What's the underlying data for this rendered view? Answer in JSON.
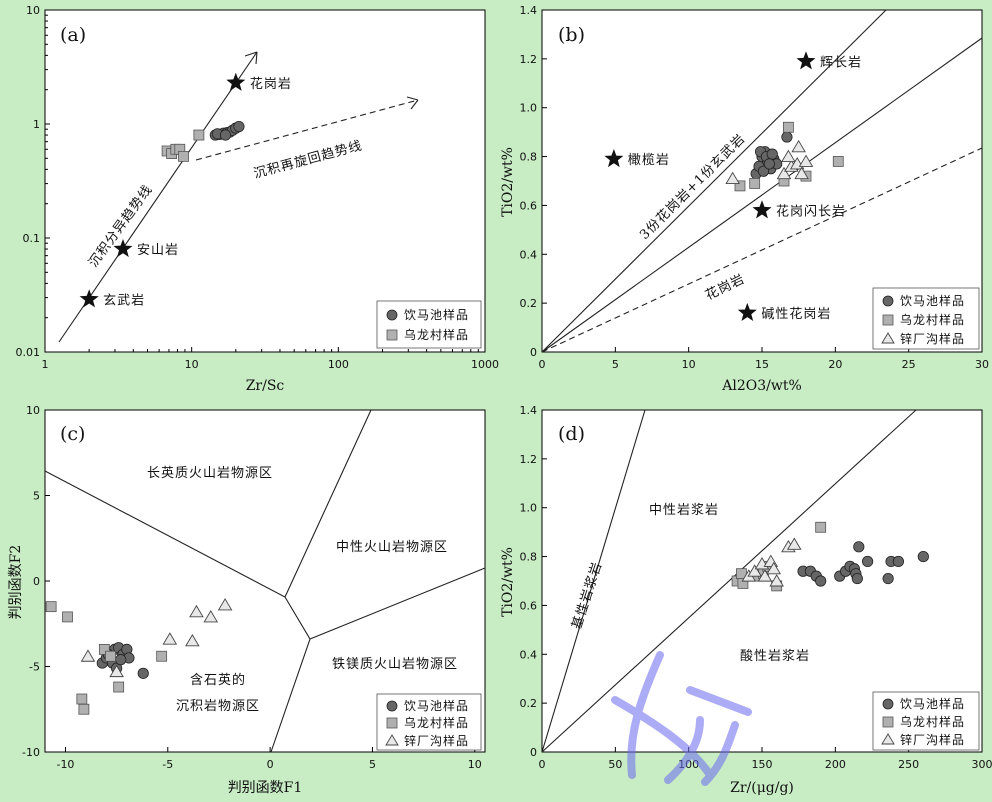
{
  "legend": {
    "yinmachi": "饮马池样品",
    "wulongcun": "乌龙村样品",
    "xinchanggou": "锌厂沟样品"
  },
  "chart_data": [
    {
      "panel": "(a)",
      "type": "scatter",
      "xscale": "log",
      "yscale": "log",
      "xlabel": "Zr/Sc",
      "ylabel": "",
      "xlim": [
        1,
        1000
      ],
      "ylim": [
        0.01,
        10
      ],
      "xticks": [
        "1",
        "10",
        "100",
        "1000"
      ],
      "yticks": [
        "0.01",
        "0.1",
        "1",
        "10"
      ],
      "stars": [
        {
          "label": "花岗岩",
          "x": 20,
          "y": 2.3
        },
        {
          "label": "安山岩",
          "x": 3.4,
          "y": 0.08
        },
        {
          "label": "玄武岩",
          "x": 2,
          "y": 0.029
        }
      ],
      "annotations": [
        "沉积分异趋势线",
        "沉积再旋回趋势线"
      ],
      "series": [
        {
          "name": "饮马池样品",
          "marker": "circle",
          "x": [
            14.5,
            15.5,
            16.5,
            17.5,
            18.2,
            19,
            20,
            21,
            15,
            17
          ],
          "y": [
            0.8,
            0.81,
            0.83,
            0.84,
            0.85,
            0.88,
            0.92,
            0.95,
            0.82,
            0.8
          ]
        },
        {
          "name": "乌龙村样品",
          "marker": "square",
          "x": [
            6.8,
            7.3,
            7.8,
            8.3,
            8.8,
            11.2
          ],
          "y": [
            0.58,
            0.55,
            0.6,
            0.6,
            0.52,
            0.8
          ]
        }
      ]
    },
    {
      "panel": "(b)",
      "type": "scatter",
      "xlabel": "Al2O3/wt%",
      "ylabel": "TiO2/wt%",
      "xlim": [
        0,
        30
      ],
      "ylim": [
        0,
        1.4
      ],
      "xticks": [
        "0",
        "5",
        "10",
        "15",
        "20",
        "25",
        "30"
      ],
      "yticks": [
        "0",
        "0.2",
        "0.4",
        "0.6",
        "0.8",
        "1.0",
        "1.2",
        "1.4"
      ],
      "stars": [
        {
          "label": "辉长岩",
          "x": 18,
          "y": 1.19
        },
        {
          "label": "橄榄岩",
          "x": 4.9,
          "y": 0.79
        },
        {
          "label": "花岗闪长岩",
          "x": 15,
          "y": 0.58
        },
        {
          "label": "碱性花岗岩",
          "x": 14,
          "y": 0.16
        }
      ],
      "annotations": [
        "3份花岗岩+1份玄武岩",
        "花岗岩"
      ],
      "series": [
        {
          "name": "饮马池样品",
          "marker": "circle",
          "x": [
            14.6,
            14.8,
            15,
            15.2,
            15.4,
            15.6,
            15.8,
            16,
            14.9,
            15.3,
            15.1,
            15.7,
            16.7,
            15.5
          ],
          "y": [
            0.73,
            0.76,
            0.8,
            0.82,
            0.78,
            0.75,
            0.79,
            0.77,
            0.82,
            0.8,
            0.74,
            0.81,
            0.88,
            0.77
          ]
        },
        {
          "name": "乌龙村样品",
          "marker": "square",
          "x": [
            13.5,
            14.5,
            16.5,
            16.8,
            18,
            20.2
          ],
          "y": [
            0.68,
            0.69,
            0.7,
            0.92,
            0.72,
            0.78
          ]
        },
        {
          "name": "锌厂沟样品",
          "marker": "triangle",
          "x": [
            13,
            16.5,
            17,
            17.4,
            17.7,
            18,
            17.5,
            16.8
          ],
          "y": [
            0.71,
            0.73,
            0.76,
            0.77,
            0.73,
            0.78,
            0.84,
            0.8
          ]
        }
      ]
    },
    {
      "panel": "(c)",
      "type": "scatter",
      "xlabel": "判别函数F1",
      "ylabel": "判别函数F2",
      "xlim": [
        -11,
        10.5
      ],
      "ylim": [
        -10,
        10
      ],
      "xticks": [
        "-10",
        "-5",
        "0",
        "5",
        "10"
      ],
      "yticks": [
        "-10",
        "-5",
        "0",
        "5",
        "10"
      ],
      "regions": [
        "长英质火山岩物源区",
        "中性火山岩物源区",
        "铁镁质火山岩物源区",
        "含石英的",
        "沉积岩物源区"
      ],
      "series": [
        {
          "name": "饮马池样品",
          "marker": "circle",
          "x": [
            -8.2,
            -8,
            -7.8,
            -7.6,
            -7.4,
            -7.2,
            -7,
            -6.9,
            -7.7,
            -7.5,
            -7.3,
            -6.2,
            -7.9
          ],
          "y": [
            -4.8,
            -4.5,
            -4.2,
            -4,
            -3.9,
            -4.3,
            -4,
            -4.5,
            -4.8,
            -5.1,
            -4.6,
            -5.4,
            -4.3
          ]
        },
        {
          "name": "乌龙村样品",
          "marker": "square",
          "x": [
            -10.7,
            -9.9,
            -9.1,
            -9.2,
            -8.1,
            -7.4,
            -7.8,
            -5.3
          ],
          "y": [
            -1.5,
            -2.1,
            -7.5,
            -6.9,
            -4,
            -6.2,
            -4.4,
            -4.4
          ]
        },
        {
          "name": "锌厂沟样品",
          "marker": "triangle",
          "x": [
            -8.9,
            -7.5,
            -4.9,
            -3.8,
            -3.6,
            -2.9,
            -2.2
          ],
          "y": [
            -4.4,
            -5.3,
            -3.4,
            -3.5,
            -1.8,
            -2.1,
            -1.4
          ]
        }
      ]
    },
    {
      "panel": "(d)",
      "type": "scatter",
      "xlabel": "Zr/(μg/g)",
      "ylabel": "TiO2/wt%",
      "xlim": [
        0,
        300
      ],
      "ylim": [
        0,
        1.4
      ],
      "xticks": [
        "0",
        "50",
        "100",
        "150",
        "200",
        "250",
        "300"
      ],
      "yticks": [
        "0",
        "0.2",
        "0.4",
        "0.6",
        "0.8",
        "1.0",
        "1.2",
        "1.4"
      ],
      "regions": [
        "中性岩浆岩",
        "基性岩浆岩",
        "酸性岩浆岩"
      ],
      "series": [
        {
          "name": "饮马池样品",
          "marker": "circle",
          "x": [
            178,
            183,
            187,
            190,
            203,
            207,
            210,
            213,
            214,
            215,
            216,
            222,
            236,
            238,
            243,
            260
          ],
          "y": [
            0.74,
            0.74,
            0.72,
            0.7,
            0.72,
            0.74,
            0.76,
            0.75,
            0.73,
            0.71,
            0.84,
            0.78,
            0.71,
            0.78,
            0.78,
            0.8
          ]
        },
        {
          "name": "乌龙村样品",
          "marker": "square",
          "x": [
            133,
            136,
            137,
            147,
            151,
            154,
            160,
            190
          ],
          "y": [
            0.7,
            0.73,
            0.69,
            0.72,
            0.73,
            0.76,
            0.68,
            0.92
          ]
        },
        {
          "name": "锌厂沟样品",
          "marker": "triangle",
          "x": [
            141,
            145,
            150,
            152,
            156,
            158,
            160,
            168,
            172
          ],
          "y": [
            0.72,
            0.74,
            0.77,
            0.72,
            0.78,
            0.75,
            0.7,
            0.84,
            0.85
          ]
        }
      ]
    }
  ]
}
